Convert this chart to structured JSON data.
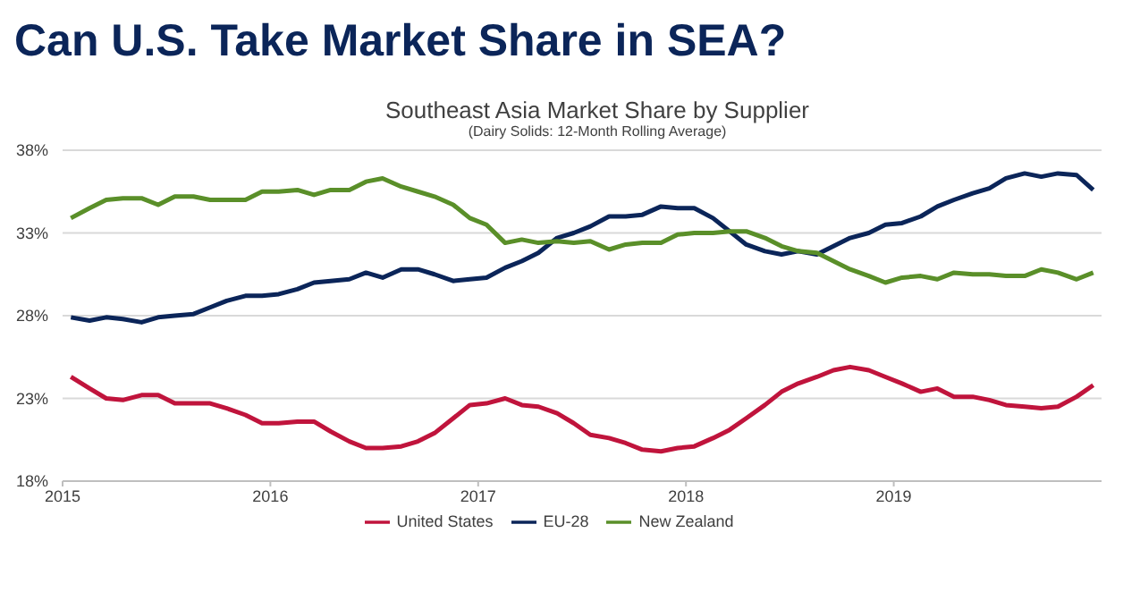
{
  "chart_data": {
    "type": "line",
    "title": "Can U.S. Take Market Share in SEA?",
    "subtitle": "Southeast Asia Market Share by Supplier",
    "annotations": [
      "(Dairy Solids: 12-Month Rolling Average)"
    ],
    "x": [
      2015.04,
      2015.13,
      2015.21,
      2015.29,
      2015.38,
      2015.46,
      2015.54,
      2015.63,
      2015.71,
      2015.79,
      2015.88,
      2015.96,
      2016.04,
      2016.13,
      2016.21,
      2016.29,
      2016.38,
      2016.46,
      2016.54,
      2016.63,
      2016.71,
      2016.79,
      2016.88,
      2016.96,
      2017.04,
      2017.13,
      2017.21,
      2017.29,
      2017.38,
      2017.46,
      2017.54,
      2017.63,
      2017.71,
      2017.79,
      2017.88,
      2017.96,
      2018.04,
      2018.13,
      2018.21,
      2018.29,
      2018.38,
      2018.46,
      2018.54,
      2018.63,
      2018.71,
      2018.79,
      2018.88,
      2018.96,
      2019.04,
      2019.13,
      2019.21,
      2019.29,
      2019.38,
      2019.46,
      2019.54,
      2019.63,
      2019.71,
      2019.79,
      2019.88,
      2019.96
    ],
    "series": [
      {
        "name": "United States",
        "color": "#c0143c",
        "values": [
          24.3,
          23.6,
          23.0,
          22.9,
          23.2,
          23.2,
          22.7,
          22.7,
          22.7,
          22.4,
          22.0,
          21.5,
          21.5,
          21.6,
          21.6,
          21.0,
          20.4,
          20.0,
          20.0,
          20.1,
          20.4,
          20.9,
          21.8,
          22.6,
          22.7,
          23.0,
          22.6,
          22.5,
          22.1,
          21.5,
          20.8,
          20.6,
          20.3,
          19.9,
          19.8,
          20.0,
          20.1,
          20.6,
          21.1,
          21.8,
          22.6,
          23.4,
          23.9,
          24.3,
          24.7,
          24.9,
          24.7,
          24.3,
          23.9,
          23.4,
          23.6,
          23.1,
          23.1,
          22.9,
          22.6,
          22.5,
          22.4,
          22.5,
          23.1,
          23.8
        ]
      },
      {
        "name": "EU-28",
        "color": "#0b2559",
        "values": [
          27.9,
          27.7,
          27.9,
          27.8,
          27.6,
          27.9,
          28.0,
          28.1,
          28.5,
          28.9,
          29.2,
          29.2,
          29.3,
          29.6,
          30.0,
          30.1,
          30.2,
          30.6,
          30.3,
          30.8,
          30.8,
          30.5,
          30.1,
          30.2,
          30.3,
          30.9,
          31.3,
          31.8,
          32.7,
          33.0,
          33.4,
          34.0,
          34.0,
          34.1,
          34.6,
          34.5,
          34.5,
          33.9,
          33.1,
          32.3,
          31.9,
          31.7,
          31.9,
          31.7,
          32.2,
          32.7,
          33.0,
          33.5,
          33.6,
          34.0,
          34.6,
          35.0,
          35.4,
          35.7,
          36.3,
          36.6,
          36.4,
          36.6,
          36.5,
          35.6
        ]
      },
      {
        "name": "New Zealand",
        "color": "#5a8f29",
        "values": [
          33.9,
          34.5,
          35.0,
          35.1,
          35.1,
          34.7,
          35.2,
          35.2,
          35.0,
          35.0,
          35.0,
          35.5,
          35.5,
          35.6,
          35.3,
          35.6,
          35.6,
          36.1,
          36.3,
          35.8,
          35.5,
          35.2,
          34.7,
          33.9,
          33.5,
          32.4,
          32.6,
          32.4,
          32.5,
          32.4,
          32.5,
          32.0,
          32.3,
          32.4,
          32.4,
          32.9,
          33.0,
          33.0,
          33.1,
          33.1,
          32.7,
          32.2,
          31.9,
          31.8,
          31.3,
          30.8,
          30.4,
          30.0,
          30.3,
          30.4,
          30.2,
          30.6,
          30.5,
          30.5,
          30.4,
          30.4,
          30.8,
          30.6,
          30.2,
          30.6
        ]
      }
    ],
    "xlim": [
      2015,
      2020
    ],
    "xticks": [
      2015,
      2016,
      2017,
      2018,
      2019
    ],
    "ylim": [
      18,
      38
    ],
    "yticks": [
      {
        "value": 18,
        "label": "18%"
      },
      {
        "value": 23,
        "label": "23%"
      },
      {
        "value": 28,
        "label": "28%"
      },
      {
        "value": 33,
        "label": "33%"
      },
      {
        "value": 38,
        "label": "38%"
      }
    ],
    "grid": "y",
    "legend": "bottom",
    "marker": "none",
    "line_style": "solid"
  }
}
